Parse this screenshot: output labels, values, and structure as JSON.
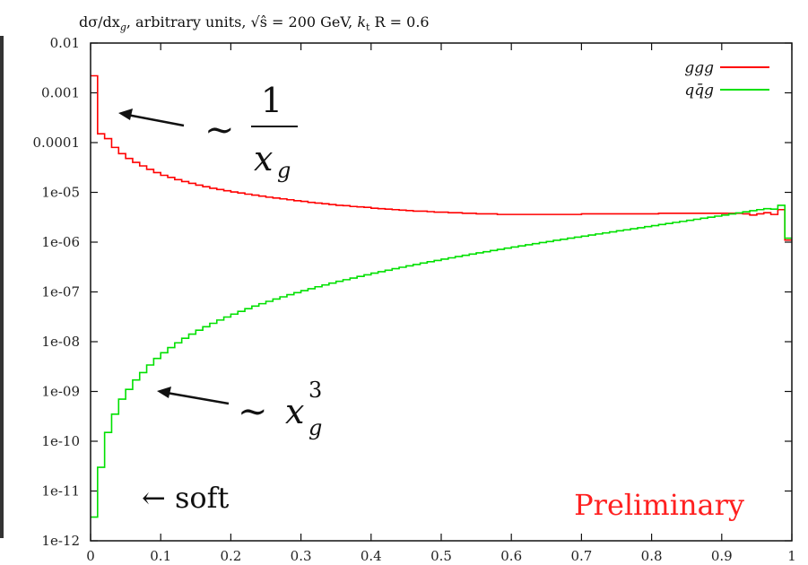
{
  "chart_data": {
    "type": "line",
    "title": "dσ/dx_g, arbitrary units, √ŝ = 200 GeV, k_t R = 0.6",
    "x_scale": "linear",
    "y_scale": "log",
    "xlim": [
      0,
      1
    ],
    "ylim": [
      1e-12,
      0.01
    ],
    "x_ticks": [
      "0",
      "0.1",
      "0.2",
      "0.3",
      "0.4",
      "0.5",
      "0.6",
      "0.7",
      "0.8",
      "0.9",
      "1"
    ],
    "y_ticks": [
      "0.01",
      "0.001",
      "0.0001",
      "1e-05",
      "1e-06",
      "1e-07",
      "1e-08",
      "1e-09",
      "1e-10",
      "1e-11",
      "1e-12"
    ],
    "grid": false,
    "legend_position": "top-right",
    "x": [
      0.005,
      0.015,
      0.025,
      0.035,
      0.045,
      0.055,
      0.065,
      0.075,
      0.085,
      0.095,
      0.105,
      0.115,
      0.125,
      0.135,
      0.145,
      0.155,
      0.165,
      0.175,
      0.185,
      0.195,
      0.205,
      0.215,
      0.225,
      0.235,
      0.245,
      0.255,
      0.265,
      0.275,
      0.285,
      0.295,
      0.305,
      0.315,
      0.325,
      0.335,
      0.345,
      0.355,
      0.365,
      0.375,
      0.385,
      0.395,
      0.405,
      0.415,
      0.425,
      0.435,
      0.445,
      0.455,
      0.465,
      0.475,
      0.485,
      0.495,
      0.505,
      0.515,
      0.525,
      0.535,
      0.545,
      0.555,
      0.565,
      0.575,
      0.585,
      0.595,
      0.605,
      0.615,
      0.625,
      0.635,
      0.645,
      0.655,
      0.665,
      0.675,
      0.685,
      0.695,
      0.705,
      0.715,
      0.725,
      0.735,
      0.745,
      0.755,
      0.765,
      0.775,
      0.785,
      0.795,
      0.805,
      0.815,
      0.825,
      0.835,
      0.845,
      0.855,
      0.865,
      0.875,
      0.885,
      0.895,
      0.905,
      0.915,
      0.925,
      0.935,
      0.945,
      0.955,
      0.965,
      0.975,
      0.985,
      0.995
    ],
    "series": [
      {
        "name": "ggg",
        "color": "#ff0000",
        "values": [
          0.0022,
          0.00015,
          0.00012,
          8e-05,
          6e-05,
          4.8e-05,
          4e-05,
          3.4e-05,
          2.9e-05,
          2.5e-05,
          2.2e-05,
          2e-05,
          1.8e-05,
          1.65e-05,
          1.52e-05,
          1.4e-05,
          1.3e-05,
          1.21e-05,
          1.14e-05,
          1.08e-05,
          1.02e-05,
          9.7e-06,
          9.2e-06,
          8.8e-06,
          8.4e-06,
          8e-06,
          7.7e-06,
          7.4e-06,
          7.1e-06,
          6.8e-06,
          6.6e-06,
          6.3e-06,
          6.1e-06,
          5.9e-06,
          5.7e-06,
          5.5e-06,
          5.4e-06,
          5.2e-06,
          5.1e-06,
          5e-06,
          4.8e-06,
          4.7e-06,
          4.6e-06,
          4.5e-06,
          4.4e-06,
          4.3e-06,
          4.2e-06,
          4.2e-06,
          4.1e-06,
          4e-06,
          4e-06,
          3.9e-06,
          3.9e-06,
          3.8e-06,
          3.8e-06,
          3.7e-06,
          3.7e-06,
          3.7e-06,
          3.6e-06,
          3.6e-06,
          3.6e-06,
          3.6e-06,
          3.6e-06,
          3.6e-06,
          3.6e-06,
          3.6e-06,
          3.6e-06,
          3.6e-06,
          3.6e-06,
          3.6e-06,
          3.7e-06,
          3.7e-06,
          3.7e-06,
          3.7e-06,
          3.7e-06,
          3.7e-06,
          3.7e-06,
          3.7e-06,
          3.7e-06,
          3.7e-06,
          3.7e-06,
          3.8e-06,
          3.8e-06,
          3.8e-06,
          3.8e-06,
          3.8e-06,
          3.8e-06,
          3.8e-06,
          3.8e-06,
          3.8e-06,
          3.8e-06,
          3.8e-06,
          3.8e-06,
          3.7e-06,
          3.5e-06,
          3.7e-06,
          3.9e-06,
          3.6e-06,
          4.5e-06,
          1.1e-06
        ]
      },
      {
        "name": "qq̄g",
        "color": "#00e000",
        "values": [
          3e-12,
          3e-11,
          1.5e-10,
          3.5e-10,
          7e-10,
          1.1e-09,
          1.7e-09,
          2.4e-09,
          3.4e-09,
          4.6e-09,
          6e-09,
          7.6e-09,
          9.5e-09,
          1.17e-08,
          1.42e-08,
          1.7e-08,
          2e-08,
          2.34e-08,
          2.72e-08,
          3.13e-08,
          3.58e-08,
          4.07e-08,
          4.6e-08,
          5.18e-08,
          5.8e-08,
          6.47e-08,
          7.19e-08,
          7.96e-08,
          8.79e-08,
          9.67e-08,
          1.06e-07,
          1.16e-07,
          1.27e-07,
          1.38e-07,
          1.5e-07,
          1.63e-07,
          1.76e-07,
          1.9e-07,
          2.05e-07,
          2.21e-07,
          2.38e-07,
          2.55e-07,
          2.73e-07,
          2.93e-07,
          3.13e-07,
          3.34e-07,
          3.56e-07,
          3.8e-07,
          4.04e-07,
          4.29e-07,
          4.56e-07,
          4.84e-07,
          5.13e-07,
          5.44e-07,
          5.75e-07,
          6.09e-07,
          6.43e-07,
          6.8e-07,
          7.17e-07,
          7.57e-07,
          7.98e-07,
          8.41e-07,
          8.86e-07,
          9.33e-07,
          9.82e-07,
          1.03e-06,
          1.09e-06,
          1.14e-06,
          1.2e-06,
          1.26e-06,
          1.32e-06,
          1.39e-06,
          1.46e-06,
          1.53e-06,
          1.61e-06,
          1.69e-06,
          1.77e-06,
          1.86e-06,
          1.95e-06,
          2.05e-06,
          2.15e-06,
          2.26e-06,
          2.37e-06,
          2.49e-06,
          2.61e-06,
          2.74e-06,
          2.88e-06,
          3.02e-06,
          3.17e-06,
          3.33e-06,
          3.5e-06,
          3.68e-06,
          3.87e-06,
          4.07e-06,
          4.28e-06,
          4.5e-06,
          4.7e-06,
          4.6e-06,
          5.5e-06,
          1.2e-06
        ]
      }
    ],
    "annotations": [
      {
        "text": "∼ 1/x_g",
        "numerator": "1",
        "denominator": "x",
        "subscript": "g",
        "tilde": "∼"
      },
      {
        "text": "∼ x_g^3",
        "tilde": "∼",
        "base": "x",
        "subscript": "g",
        "superscript": "3"
      },
      {
        "text": "← soft"
      },
      {
        "text": "Preliminary",
        "color": "#ff2020"
      }
    ],
    "title_parts": {
      "lead": "dσ/dx",
      "lead_sub": "g",
      "mid": ", arbitrary units, ",
      "sqrt": "√ŝ",
      "energy": " = 200 GeV, ",
      "k": "k",
      "k_sub": "t",
      "tail": " R = 0.6"
    }
  }
}
